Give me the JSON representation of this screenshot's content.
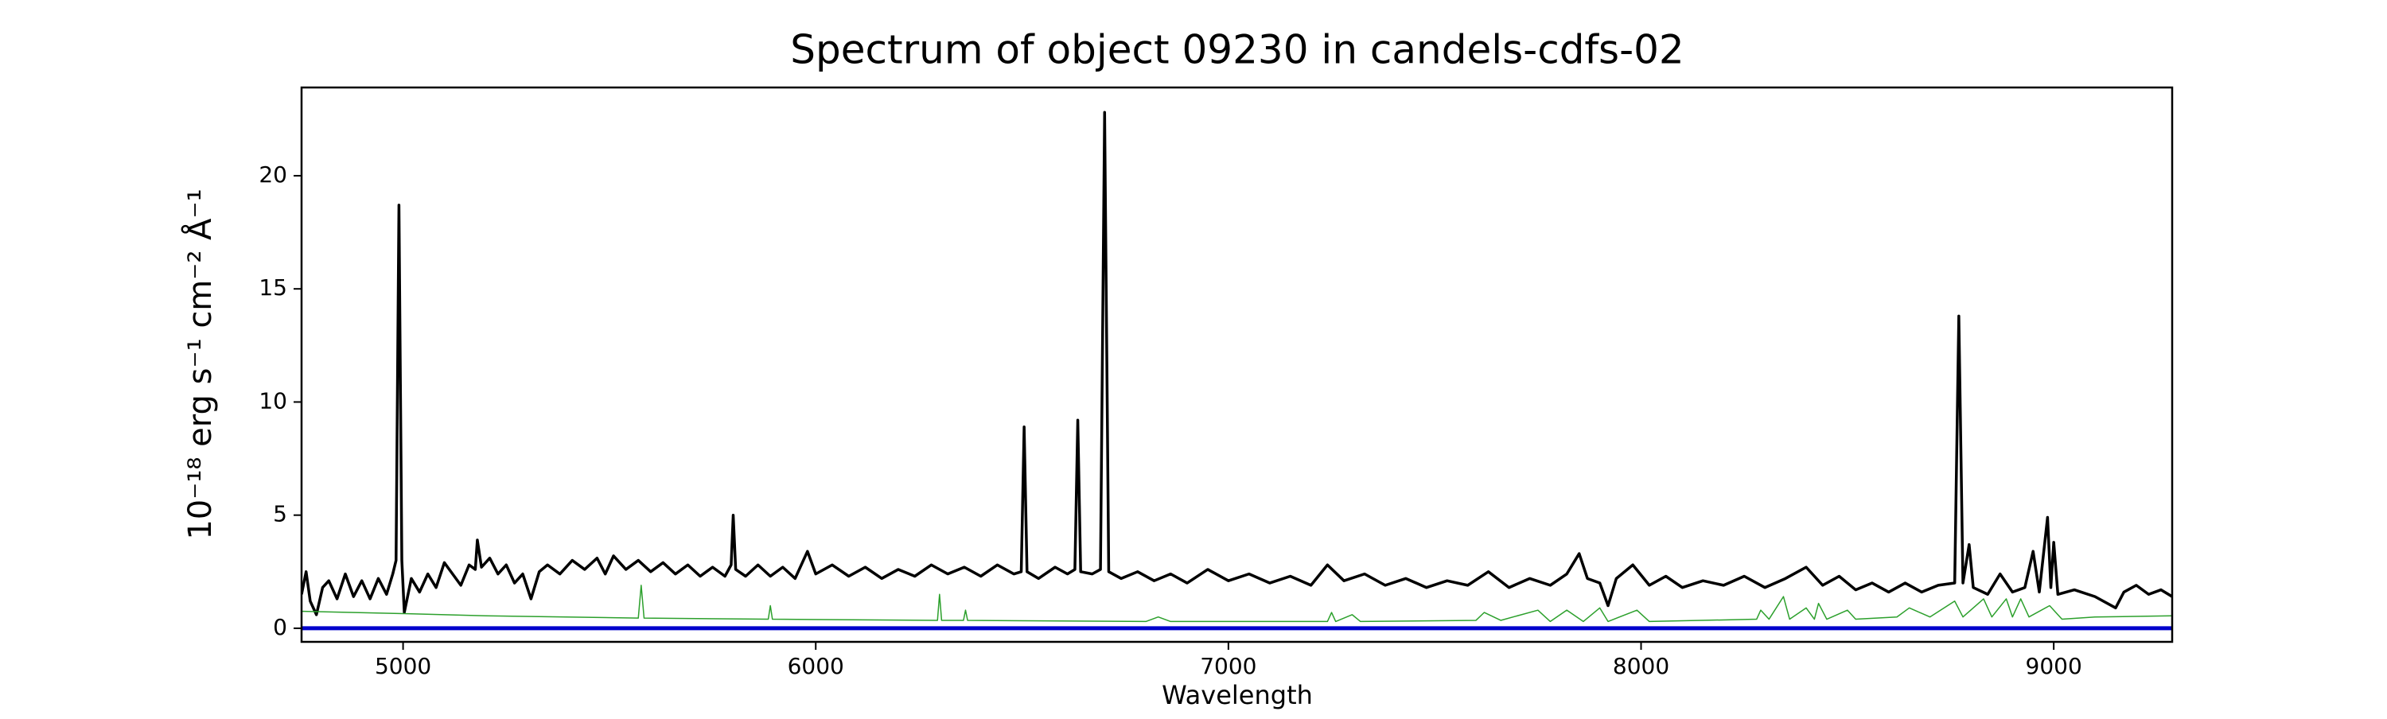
{
  "chart_data": {
    "type": "line",
    "title": "Spectrum of object 09230 in candels-cdfs-02",
    "x_label": "Wavelength",
    "y_label": "10⁻¹⁸ erg s⁻¹ cm⁻² Å⁻¹",
    "xlim": [
      4754,
      9287
    ],
    "ylim": [
      -0.6,
      23.9
    ],
    "xticks": [
      5000,
      6000,
      7000,
      8000,
      9000
    ],
    "yticks": [
      0,
      5,
      10,
      15,
      20
    ],
    "series": [
      {
        "color": "#000000",
        "x": [
          4754,
          4765,
          4775,
          4790,
          4805,
          4820,
          4840,
          4860,
          4880,
          4900,
          4920,
          4940,
          4960,
          4975,
          4983,
          4990,
          4997,
          5003,
          5020,
          5040,
          5060,
          5080,
          5100,
          5120,
          5140,
          5160,
          5175,
          5180,
          5190,
          5210,
          5230,
          5250,
          5270,
          5290,
          5310,
          5330,
          5350,
          5380,
          5410,
          5440,
          5470,
          5490,
          5510,
          5540,
          5570,
          5600,
          5630,
          5660,
          5690,
          5720,
          5750,
          5780,
          5795,
          5800,
          5806,
          5830,
          5860,
          5890,
          5920,
          5950,
          5980,
          6000,
          6040,
          6080,
          6120,
          6160,
          6200,
          6240,
          6280,
          6320,
          6360,
          6400,
          6440,
          6480,
          6498,
          6505,
          6512,
          6540,
          6580,
          6610,
          6628,
          6635,
          6642,
          6670,
          6690,
          6700,
          6710,
          6740,
          6780,
          6820,
          6860,
          6900,
          6950,
          7000,
          7050,
          7100,
          7150,
          7200,
          7240,
          7280,
          7330,
          7380,
          7430,
          7480,
          7530,
          7580,
          7630,
          7680,
          7730,
          7780,
          7820,
          7850,
          7870,
          7900,
          7920,
          7940,
          7980,
          8020,
          8060,
          8100,
          8150,
          8200,
          8250,
          8300,
          8350,
          8400,
          8440,
          8480,
          8520,
          8560,
          8600,
          8640,
          8680,
          8720,
          8760,
          8770,
          8780,
          8795,
          8805,
          8840,
          8870,
          8900,
          8930,
          8950,
          8965,
          8985,
          8993,
          9000,
          9010,
          9050,
          9100,
          9150,
          9170,
          9200,
          9230,
          9260,
          9287
        ],
        "values": [
          1.5,
          2.5,
          1.2,
          0.6,
          1.8,
          2.1,
          1.3,
          2.4,
          1.4,
          2.1,
          1.3,
          2.2,
          1.5,
          2.4,
          3,
          18.7,
          3,
          0.7,
          2.2,
          1.6,
          2.4,
          1.8,
          2.9,
          2.4,
          1.9,
          2.8,
          2.6,
          3.9,
          2.7,
          3.1,
          2.4,
          2.8,
          2.0,
          2.4,
          1.3,
          2.5,
          2.8,
          2.4,
          3.0,
          2.6,
          3.1,
          2.4,
          3.2,
          2.6,
          3.0,
          2.5,
          2.9,
          2.4,
          2.8,
          2.3,
          2.7,
          2.3,
          2.8,
          5.0,
          2.6,
          2.3,
          2.8,
          2.3,
          2.7,
          2.2,
          3.4,
          2.4,
          2.8,
          2.3,
          2.7,
          2.2,
          2.6,
          2.3,
          2.8,
          2.4,
          2.7,
          2.3,
          2.8,
          2.4,
          2.5,
          8.9,
          2.5,
          2.2,
          2.7,
          2.4,
          2.6,
          9.2,
          2.5,
          2.4,
          2.6,
          22.8,
          2.5,
          2.2,
          2.5,
          2.1,
          2.4,
          2.0,
          2.6,
          2.1,
          2.4,
          2.0,
          2.3,
          1.9,
          2.8,
          2.1,
          2.4,
          1.9,
          2.2,
          1.8,
          2.1,
          1.9,
          2.5,
          1.8,
          2.2,
          1.9,
          2.4,
          3.3,
          2.2,
          2.0,
          1.0,
          2.2,
          2.8,
          1.9,
          2.3,
          1.8,
          2.1,
          1.9,
          2.3,
          1.8,
          2.2,
          2.7,
          1.9,
          2.3,
          1.7,
          2.0,
          1.6,
          2.0,
          1.6,
          1.9,
          2.0,
          13.8,
          2.0,
          3.7,
          1.8,
          1.5,
          2.4,
          1.6,
          1.8,
          3.4,
          1.6,
          4.9,
          1.8,
          3.8,
          1.5,
          1.7,
          1.4,
          0.9,
          1.6,
          1.9,
          1.5,
          1.7,
          1.4
        ]
      },
      {
        "color": "#2ca02c",
        "x": [
          4754,
          5000,
          5200,
          5570,
          5577,
          5584,
          5885,
          5890,
          5895,
          6295,
          6300,
          6305,
          6358,
          6363,
          6368,
          6800,
          6830,
          6860,
          7240,
          7250,
          7260,
          7300,
          7320,
          7600,
          7620,
          7660,
          7750,
          7780,
          7820,
          7860,
          7900,
          7920,
          7990,
          8020,
          8280,
          8290,
          8310,
          8345,
          8360,
          8400,
          8420,
          8430,
          8450,
          8500,
          8520,
          8620,
          8650,
          8700,
          8760,
          8780,
          8830,
          8850,
          8885,
          8900,
          8920,
          8940,
          8990,
          9020,
          9100,
          9287
        ],
        "values": [
          0.75,
          0.65,
          0.55,
          0.45,
          1.9,
          0.45,
          0.4,
          1.0,
          0.4,
          0.35,
          1.5,
          0.35,
          0.35,
          0.8,
          0.35,
          0.3,
          0.5,
          0.3,
          0.3,
          0.7,
          0.3,
          0.6,
          0.3,
          0.35,
          0.7,
          0.35,
          0.8,
          0.3,
          0.8,
          0.3,
          0.9,
          0.3,
          0.8,
          0.3,
          0.4,
          0.8,
          0.4,
          1.4,
          0.4,
          0.9,
          0.4,
          1.1,
          0.4,
          0.8,
          0.4,
          0.5,
          0.9,
          0.5,
          1.2,
          0.5,
          1.3,
          0.5,
          1.3,
          0.5,
          1.3,
          0.5,
          1.0,
          0.4,
          0.5,
          0.55
        ]
      },
      {
        "color": "#0000cc",
        "x": [
          4754,
          9287
        ],
        "values": [
          0,
          0
        ]
      }
    ]
  }
}
